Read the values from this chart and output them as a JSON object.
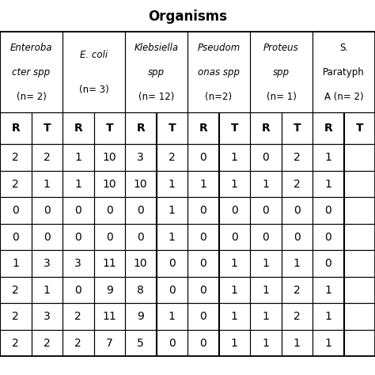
{
  "title": "Organisms",
  "col_groups": [
    {
      "lines": [
        "Enteroba",
        "cter spp",
        "(n= 2)"
      ],
      "italic": [
        true,
        true,
        false
      ]
    },
    {
      "lines": [
        "E. coli",
        "(n= 3)"
      ],
      "italic": [
        true,
        false
      ]
    },
    {
      "lines": [
        "Klebsiella",
        "spp",
        "(n= 12)"
      ],
      "italic": [
        true,
        true,
        false
      ]
    },
    {
      "lines": [
        "Pseudom",
        "onas spp",
        "(n=2)"
      ],
      "italic": [
        true,
        true,
        false
      ]
    },
    {
      "lines": [
        "Proteus",
        "spp",
        "(n= 1)"
      ],
      "italic": [
        true,
        true,
        false
      ]
    },
    {
      "lines": [
        "S.",
        "Paratyph",
        "A (n= 2)"
      ],
      "italic": [
        false,
        false,
        false
      ]
    }
  ],
  "subheaders": [
    "R",
    "T",
    "R",
    "T",
    "R",
    "T",
    "R",
    "T",
    "R",
    "T",
    "R",
    "T"
  ],
  "rows": [
    [
      "2",
      "2",
      "1",
      "10",
      "3",
      "2",
      "0",
      "1",
      "0",
      "2",
      "1",
      ""
    ],
    [
      "2",
      "1",
      "1",
      "10",
      "10",
      "1",
      "1",
      "1",
      "1",
      "2",
      "1",
      ""
    ],
    [
      "0",
      "0",
      "0",
      "0",
      "0",
      "1",
      "0",
      "0",
      "0",
      "0",
      "0",
      ""
    ],
    [
      "0",
      "0",
      "0",
      "0",
      "0",
      "1",
      "0",
      "0",
      "0",
      "0",
      "0",
      ""
    ],
    [
      "1",
      "3",
      "3",
      "11",
      "10",
      "0",
      "0",
      "1",
      "1",
      "1",
      "0",
      ""
    ],
    [
      "2",
      "1",
      "0",
      "9",
      "8",
      "0",
      "0",
      "1",
      "1",
      "2",
      "1",
      ""
    ],
    [
      "2",
      "3",
      "2",
      "11",
      "9",
      "1",
      "0",
      "1",
      "1",
      "2",
      "1",
      ""
    ],
    [
      "2",
      "2",
      "2",
      "7",
      "5",
      "0",
      "0",
      "1",
      "1",
      "1",
      "1",
      ""
    ]
  ],
  "bg_color": "#ffffff",
  "line_color": "#000000",
  "text_color": "#000000",
  "header_fontsize": 8.5,
  "cell_fontsize": 10,
  "title_fontsize": 12
}
